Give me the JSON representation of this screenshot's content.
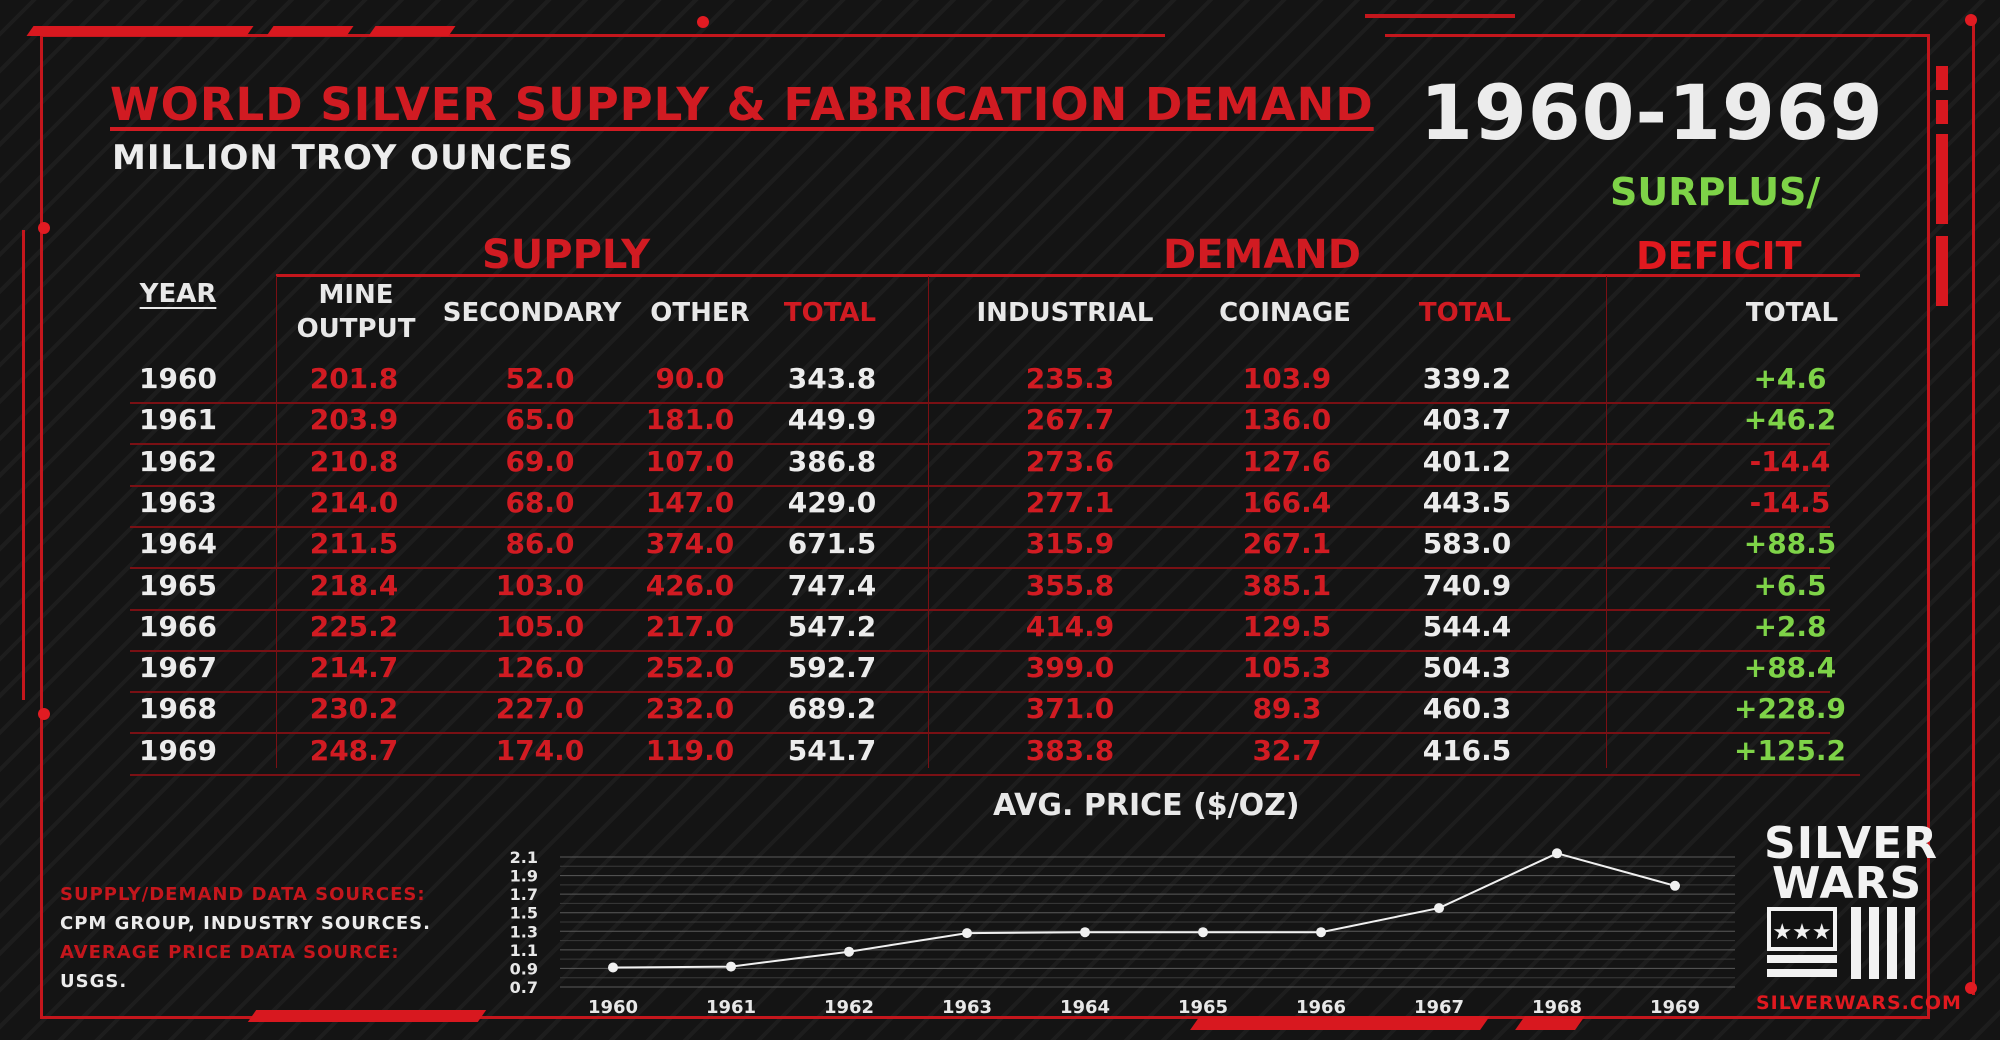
{
  "title": "WORLD SILVER SUPPLY & FABRICATION DEMAND",
  "subtitle": "MILLION TROY OUNCES",
  "year_range": "1960-1969",
  "surplus_label": "SURPLUS/",
  "deficit_label": "DEFICIT",
  "supply_group": "SUPPLY",
  "demand_group": "DEMAND",
  "columns": {
    "year": "YEAR",
    "mine_1": "MINE",
    "mine_2": "OUTPUT",
    "secondary": "SECONDARY",
    "other": "OTHER",
    "supply_total": "TOTAL",
    "industrial": "INDUSTRIAL",
    "coinage": "COINAGE",
    "demand_total": "TOTAL",
    "net_total": "TOTAL"
  },
  "rows": [
    {
      "year": "1960",
      "mine": "201.8",
      "secondary": "52.0",
      "other": "90.0",
      "supply_total": "343.8",
      "industrial": "235.3",
      "coinage": "103.9",
      "demand_total": "339.2",
      "net": "+4.6"
    },
    {
      "year": "1961",
      "mine": "203.9",
      "secondary": "65.0",
      "other": "181.0",
      "supply_total": "449.9",
      "industrial": "267.7",
      "coinage": "136.0",
      "demand_total": "403.7",
      "net": "+46.2"
    },
    {
      "year": "1962",
      "mine": "210.8",
      "secondary": "69.0",
      "other": "107.0",
      "supply_total": "386.8",
      "industrial": "273.6",
      "coinage": "127.6",
      "demand_total": "401.2",
      "net": "-14.4"
    },
    {
      "year": "1963",
      "mine": "214.0",
      "secondary": "68.0",
      "other": "147.0",
      "supply_total": "429.0",
      "industrial": "277.1",
      "coinage": "166.4",
      "demand_total": "443.5",
      "net": "-14.5"
    },
    {
      "year": "1964",
      "mine": "211.5",
      "secondary": "86.0",
      "other": "374.0",
      "supply_total": "671.5",
      "industrial": "315.9",
      "coinage": "267.1",
      "demand_total": "583.0",
      "net": "+88.5"
    },
    {
      "year": "1965",
      "mine": "218.4",
      "secondary": "103.0",
      "other": "426.0",
      "supply_total": "747.4",
      "industrial": "355.8",
      "coinage": "385.1",
      "demand_total": "740.9",
      "net": "+6.5"
    },
    {
      "year": "1966",
      "mine": "225.2",
      "secondary": "105.0",
      "other": "217.0",
      "supply_total": "547.2",
      "industrial": "414.9",
      "coinage": "129.5",
      "demand_total": "544.4",
      "net": "+2.8"
    },
    {
      "year": "1967",
      "mine": "214.7",
      "secondary": "126.0",
      "other": "252.0",
      "supply_total": "592.7",
      "industrial": "399.0",
      "coinage": "105.3",
      "demand_total": "504.3",
      "net": "+88.4"
    },
    {
      "year": "1968",
      "mine": "230.2",
      "secondary": "227.0",
      "other": "232.0",
      "supply_total": "689.2",
      "industrial": "371.0",
      "coinage": "89.3",
      "demand_total": "460.3",
      "net": "+228.9"
    },
    {
      "year": "1969",
      "mine": "248.7",
      "secondary": "174.0",
      "other": "119.0",
      "supply_total": "541.7",
      "industrial": "383.8",
      "coinage": "32.7",
      "demand_total": "416.5",
      "net": "+125.2"
    }
  ],
  "sources": {
    "sd_label": "SUPPLY/DEMAND DATA SOURCES:",
    "sd_value": "CPM GROUP, INDUSTRY SOURCES.",
    "price_label": "AVERAGE PRICE DATA SOURCE:",
    "price_value": "USGS."
  },
  "logo": {
    "line1": "SILVER",
    "line2": "WARS",
    "url": "SILVERWARS.COM"
  },
  "colors": {
    "accent_red": "#d11b22",
    "positive_green": "#7ed348",
    "negative_red": "#e0191f"
  },
  "chart_data": {
    "type": "line",
    "title": "AVG. PRICE ($/OZ)",
    "categories": [
      "1960",
      "1961",
      "1962",
      "1963",
      "1964",
      "1965",
      "1966",
      "1967",
      "1968",
      "1969"
    ],
    "values": [
      0.91,
      0.92,
      1.08,
      1.28,
      1.29,
      1.29,
      1.29,
      1.55,
      2.14,
      1.79
    ],
    "yticks": [
      "0.7",
      "0.9",
      "1.1",
      "1.3",
      "1.5",
      "1.7",
      "1.9",
      "2.1"
    ],
    "ylim": [
      0.7,
      2.1
    ],
    "grid": true
  }
}
